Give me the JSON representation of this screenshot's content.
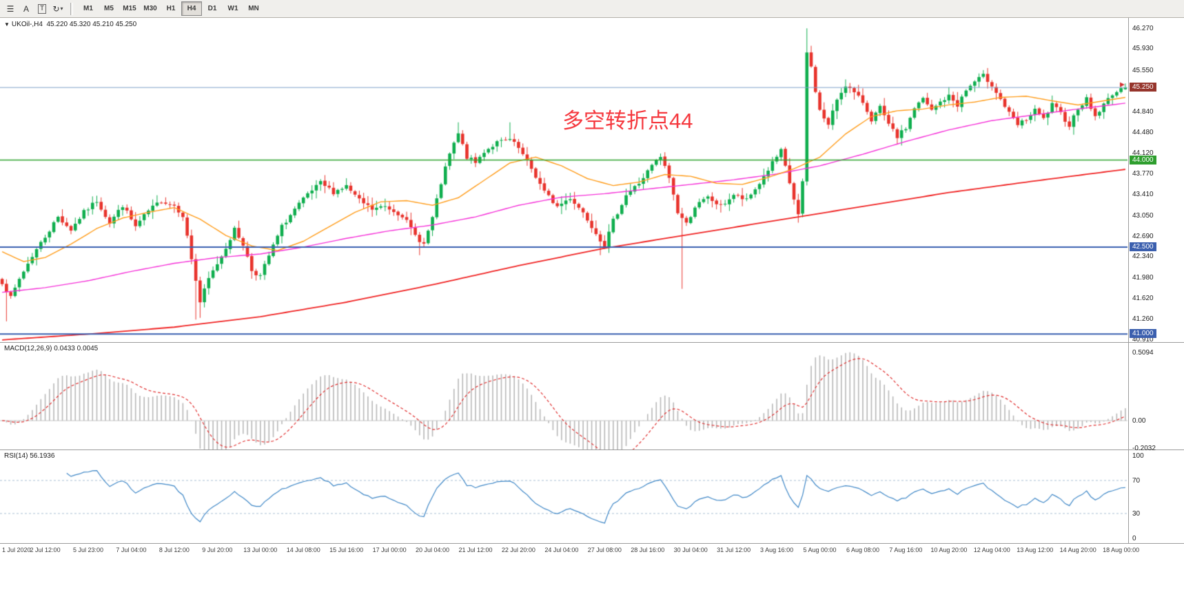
{
  "toolbar": {
    "icons": [
      {
        "name": "chart-list-icon",
        "glyph": "☰"
      },
      {
        "name": "text-annotation-icon",
        "glyph": "A"
      },
      {
        "name": "textbox-icon",
        "glyph": "T"
      },
      {
        "name": "cycle-icon",
        "glyph": "↻"
      }
    ],
    "timeframes": [
      {
        "label": "M1",
        "active": false
      },
      {
        "label": "M5",
        "active": false
      },
      {
        "label": "M15",
        "active": false
      },
      {
        "label": "M30",
        "active": false
      },
      {
        "label": "H1",
        "active": false
      },
      {
        "label": "H4",
        "active": true
      },
      {
        "label": "D1",
        "active": false
      },
      {
        "label": "W1",
        "active": false
      },
      {
        "label": "MN",
        "active": false
      }
    ]
  },
  "chart": {
    "symbol_label": "UKOil-,H4",
    "ohlc_label": "45.220 45.320 45.210 45.250",
    "annotation": "多空转折点44",
    "price_axis_labels": [
      {
        "text": "46.270",
        "p": 46.27
      },
      {
        "text": "45.930",
        "p": 45.93
      },
      {
        "text": "45.550",
        "p": 45.55
      },
      {
        "text": "44.840",
        "p": 44.84
      },
      {
        "text": "44.480",
        "p": 44.48
      },
      {
        "text": "44.120",
        "p": 44.12
      },
      {
        "text": "43.770",
        "p": 43.77
      },
      {
        "text": "43.410",
        "p": 43.41
      },
      {
        "text": "43.050",
        "p": 43.05
      },
      {
        "text": "42.690",
        "p": 42.69
      },
      {
        "text": "42.340",
        "p": 42.34
      },
      {
        "text": "41.980",
        "p": 41.98
      },
      {
        "text": "41.620",
        "p": 41.62
      },
      {
        "text": "41.260",
        "p": 41.26
      },
      {
        "text": "40.910",
        "p": 40.91
      }
    ],
    "price_tags": [
      {
        "text": "45.250",
        "p": 45.25,
        "bg": "#96352c"
      },
      {
        "text": "44.000",
        "p": 44.0,
        "bg": "#2e9e2e"
      },
      {
        "text": "42.500",
        "p": 42.5,
        "bg": "#3b5fae"
      },
      {
        "text": "41.000",
        "p": 41.0,
        "bg": "#3b5fae"
      }
    ]
  },
  "macd": {
    "label": "MACD(12,26,9) 0.0433 0.0045",
    "axis_labels": [
      {
        "text": "0.5094",
        "v": 0.5094
      },
      {
        "text": "0.00",
        "v": 0
      },
      {
        "text": "-0.2032",
        "v": -0.2032
      }
    ]
  },
  "rsi": {
    "label": "RSI(14) 56.1936",
    "axis_labels": [
      {
        "text": "100",
        "v": 100
      },
      {
        "text": "70",
        "v": 70
      },
      {
        "text": "30",
        "v": 30
      },
      {
        "text": "0",
        "v": 0
      }
    ]
  },
  "time_axis": [
    "1 Jul 2020",
    "2 Jul 12:00",
    "5 Jul 23:00",
    "7 Jul 04:00",
    "8 Jul 12:00",
    "9 Jul 20:00",
    "13 Jul 00:00",
    "14 Jul 08:00",
    "15 Jul 16:00",
    "17 Jul 00:00",
    "20 Jul 04:00",
    "21 Jul 12:00",
    "22 Jul 20:00",
    "24 Jul 04:00",
    "27 Jul 08:00",
    "28 Jul 16:00",
    "30 Jul 04:00",
    "31 Jul 12:00",
    "3 Aug 16:00",
    "5 Aug 00:00",
    "6 Aug 08:00",
    "7 Aug 16:00",
    "10 Aug 20:00",
    "12 Aug 04:00",
    "13 Aug 12:00",
    "14 Aug 20:00",
    "18 Aug 00:00"
  ],
  "chart_data": {
    "type": "candlestick",
    "symbol": "UKOil-",
    "timeframe": "H4",
    "bars": 262,
    "label_step": 10,
    "price_range": [
      40.85,
      46.45
    ],
    "last_candle": {
      "o": 45.22,
      "h": 45.32,
      "l": 45.21,
      "c": 45.25
    },
    "close_anchors": [
      [
        0,
        41.9
      ],
      [
        2,
        41.62
      ],
      [
        4,
        41.95
      ],
      [
        7,
        42.35
      ],
      [
        10,
        42.68
      ],
      [
        13,
        43.02
      ],
      [
        16,
        42.8
      ],
      [
        19,
        43.1
      ],
      [
        22,
        43.3
      ],
      [
        25,
        42.92
      ],
      [
        28,
        43.22
      ],
      [
        31,
        42.85
      ],
      [
        34,
        43.12
      ],
      [
        37,
        43.3
      ],
      [
        40,
        43.22
      ],
      [
        42,
        43.05
      ],
      [
        44,
        42.3
      ],
      [
        46,
        41.55
      ],
      [
        48,
        41.95
      ],
      [
        51,
        42.35
      ],
      [
        54,
        42.8
      ],
      [
        56,
        42.55
      ],
      [
        58,
        42.1
      ],
      [
        60,
        42.0
      ],
      [
        62,
        42.35
      ],
      [
        65,
        42.85
      ],
      [
        68,
        43.15
      ],
      [
        71,
        43.4
      ],
      [
        74,
        43.6
      ],
      [
        77,
        43.45
      ],
      [
        80,
        43.55
      ],
      [
        83,
        43.3
      ],
      [
        86,
        43.15
      ],
      [
        89,
        43.2
      ],
      [
        93,
        43.05
      ],
      [
        96,
        42.7
      ],
      [
        98,
        42.55
      ],
      [
        100,
        43.0
      ],
      [
        102,
        43.6
      ],
      [
        104,
        44.1
      ],
      [
        106,
        44.45
      ],
      [
        108,
        44.05
      ],
      [
        110,
        43.95
      ],
      [
        112,
        44.15
      ],
      [
        115,
        44.3
      ],
      [
        118,
        44.35
      ],
      [
        120,
        44.2
      ],
      [
        123,
        43.85
      ],
      [
        126,
        43.45
      ],
      [
        129,
        43.2
      ],
      [
        132,
        43.35
      ],
      [
        135,
        43.1
      ],
      [
        138,
        42.75
      ],
      [
        140,
        42.52
      ],
      [
        142,
        42.95
      ],
      [
        145,
        43.4
      ],
      [
        148,
        43.6
      ],
      [
        151,
        43.9
      ],
      [
        153,
        44.05
      ],
      [
        155,
        43.7
      ],
      [
        157,
        43.1
      ],
      [
        159,
        42.9
      ],
      [
        161,
        43.2
      ],
      [
        164,
        43.35
      ],
      [
        167,
        43.2
      ],
      [
        170,
        43.4
      ],
      [
        173,
        43.3
      ],
      [
        176,
        43.6
      ],
      [
        179,
        43.95
      ],
      [
        181,
        44.15
      ],
      [
        183,
        43.6
      ],
      [
        185,
        43.05
      ],
      [
        186,
        43.6
      ],
      [
        187,
        45.85
      ],
      [
        188,
        45.6
      ],
      [
        189,
        45.2
      ],
      [
        190,
        44.85
      ],
      [
        192,
        44.6
      ],
      [
        194,
        45.05
      ],
      [
        196,
        45.3
      ],
      [
        198,
        45.15
      ],
      [
        200,
        45.0
      ],
      [
        202,
        44.7
      ],
      [
        204,
        44.9
      ],
      [
        206,
        44.6
      ],
      [
        208,
        44.4
      ],
      [
        210,
        44.55
      ],
      [
        212,
        44.9
      ],
      [
        214,
        45.05
      ],
      [
        216,
        44.85
      ],
      [
        218,
        45.0
      ],
      [
        220,
        45.1
      ],
      [
        222,
        44.95
      ],
      [
        224,
        45.2
      ],
      [
        226,
        45.35
      ],
      [
        228,
        45.45
      ],
      [
        230,
        45.3
      ],
      [
        232,
        45.05
      ],
      [
        234,
        44.8
      ],
      [
        236,
        44.6
      ],
      [
        238,
        44.7
      ],
      [
        240,
        44.85
      ],
      [
        242,
        44.7
      ],
      [
        244,
        44.95
      ],
      [
        246,
        44.8
      ],
      [
        248,
        44.6
      ],
      [
        250,
        44.9
      ],
      [
        252,
        45.05
      ],
      [
        254,
        44.75
      ],
      [
        256,
        44.95
      ],
      [
        258,
        45.15
      ],
      [
        260,
        45.2
      ],
      [
        261,
        45.25
      ]
    ],
    "high_overrides": [
      [
        187,
        46.27
      ],
      [
        106,
        44.65
      ],
      [
        118,
        44.65
      ],
      [
        228,
        45.55
      ]
    ],
    "low_overrides": [
      [
        1,
        41.22
      ],
      [
        45,
        41.25
      ],
      [
        46,
        41.28
      ],
      [
        97,
        42.36
      ],
      [
        139,
        42.36
      ],
      [
        158,
        41.78
      ],
      [
        185,
        42.92
      ]
    ],
    "ma_orange": [
      [
        0,
        42.42
      ],
      [
        5,
        42.25
      ],
      [
        10,
        42.32
      ],
      [
        16,
        42.55
      ],
      [
        22,
        42.82
      ],
      [
        28,
        43.0
      ],
      [
        34,
        43.1
      ],
      [
        40,
        43.18
      ],
      [
        46,
        42.98
      ],
      [
        52,
        42.7
      ],
      [
        58,
        42.52
      ],
      [
        64,
        42.44
      ],
      [
        70,
        42.6
      ],
      [
        76,
        42.85
      ],
      [
        82,
        43.1
      ],
      [
        88,
        43.28
      ],
      [
        94,
        43.3
      ],
      [
        100,
        43.22
      ],
      [
        106,
        43.35
      ],
      [
        112,
        43.65
      ],
      [
        118,
        43.95
      ],
      [
        124,
        44.05
      ],
      [
        130,
        43.9
      ],
      [
        136,
        43.68
      ],
      [
        142,
        43.56
      ],
      [
        148,
        43.62
      ],
      [
        154,
        43.75
      ],
      [
        160,
        43.72
      ],
      [
        166,
        43.6
      ],
      [
        172,
        43.58
      ],
      [
        178,
        43.7
      ],
      [
        184,
        43.85
      ],
      [
        190,
        44.05
      ],
      [
        196,
        44.45
      ],
      [
        202,
        44.75
      ],
      [
        208,
        44.85
      ],
      [
        214,
        44.88
      ],
      [
        220,
        44.95
      ],
      [
        226,
        45.0
      ],
      [
        232,
        45.08
      ],
      [
        238,
        45.1
      ],
      [
        244,
        45.02
      ],
      [
        250,
        44.95
      ],
      [
        256,
        45.02
      ],
      [
        261,
        45.08
      ]
    ],
    "ma_magenta": [
      [
        0,
        41.72
      ],
      [
        10,
        41.8
      ],
      [
        20,
        41.92
      ],
      [
        30,
        42.08
      ],
      [
        40,
        42.22
      ],
      [
        50,
        42.32
      ],
      [
        60,
        42.38
      ],
      [
        70,
        42.5
      ],
      [
        80,
        42.65
      ],
      [
        90,
        42.78
      ],
      [
        100,
        42.88
      ],
      [
        110,
        43.02
      ],
      [
        120,
        43.22
      ],
      [
        130,
        43.36
      ],
      [
        140,
        43.42
      ],
      [
        150,
        43.5
      ],
      [
        160,
        43.58
      ],
      [
        170,
        43.66
      ],
      [
        180,
        43.76
      ],
      [
        190,
        43.9
      ],
      [
        200,
        44.1
      ],
      [
        210,
        44.32
      ],
      [
        220,
        44.52
      ],
      [
        230,
        44.68
      ],
      [
        240,
        44.78
      ],
      [
        250,
        44.88
      ],
      [
        261,
        44.98
      ]
    ],
    "ma_red": [
      [
        0,
        40.9
      ],
      [
        20,
        41.0
      ],
      [
        40,
        41.12
      ],
      [
        60,
        41.3
      ],
      [
        80,
        41.55
      ],
      [
        100,
        41.85
      ],
      [
        120,
        42.18
      ],
      [
        140,
        42.48
      ],
      [
        160,
        42.72
      ],
      [
        180,
        42.96
      ],
      [
        200,
        43.2
      ],
      [
        220,
        43.44
      ],
      [
        240,
        43.64
      ],
      [
        261,
        43.84
      ]
    ],
    "hlines": [
      {
        "p": 45.25,
        "color": "#7fa1c9",
        "width": 1,
        "role": "current-price"
      },
      {
        "p": 44.0,
        "color": "#2da32d",
        "width": 1.5,
        "role": "support-resistance"
      },
      {
        "p": 42.5,
        "color": "#3a5fb0",
        "width": 2,
        "role": "support-resistance"
      },
      {
        "p": 41.0,
        "color": "#3a5fb0",
        "width": 2,
        "role": "support-resistance"
      }
    ],
    "macd_view": [
      -0.22,
      0.58
    ],
    "macd_peak": 0.5094,
    "rsi_levels": [
      30,
      70
    ],
    "colors": {
      "candle_up": "#0fae4e",
      "candle_down": "#e8332c",
      "ma_orange": "#ff9c1a",
      "ma_magenta": "#f531d8",
      "ma_red": "#f02323",
      "macd_hist": "#b7b7b7",
      "macd_signal": "#e03030",
      "rsi_line": "#3d86c6",
      "rsi_level": "#a9bfd3"
    }
  }
}
